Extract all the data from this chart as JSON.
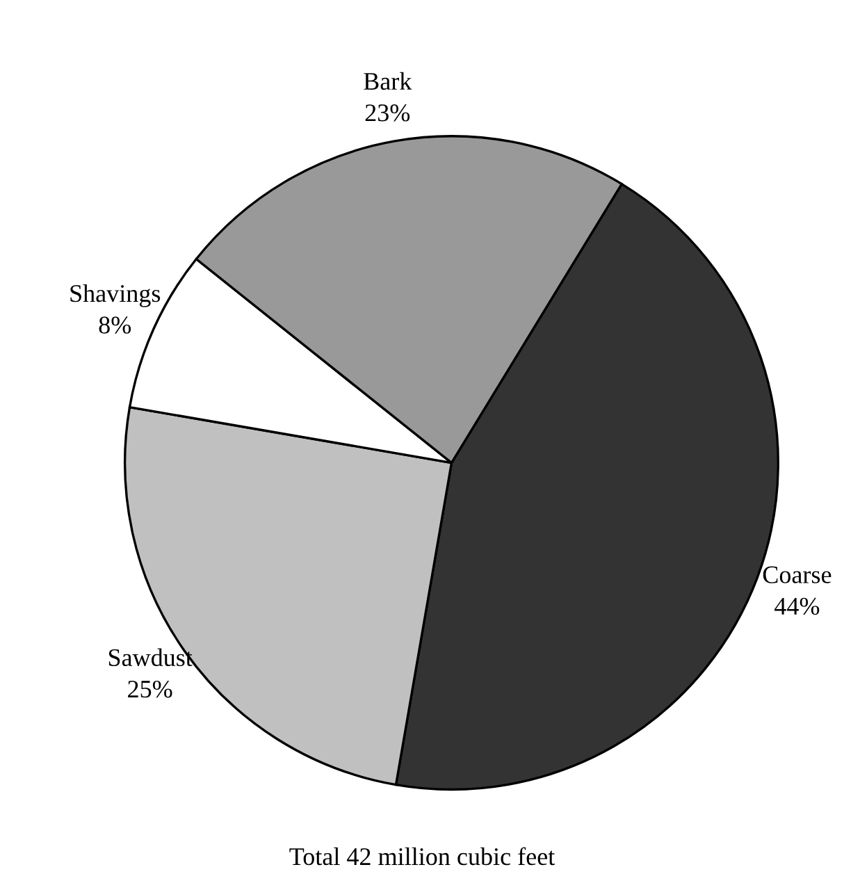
{
  "chart_data": {
    "type": "pie",
    "categories": [
      "Coarse",
      "Sawdust",
      "Shavings",
      "Bark"
    ],
    "values": [
      44,
      25,
      8,
      23
    ],
    "colors": [
      "#333333",
      "#c0c0c0",
      "#ffffff",
      "#999999"
    ],
    "value_labels": [
      "44%",
      "25%",
      "8%",
      "23%"
    ],
    "annotations": [
      "Total 42 million cubic feet"
    ]
  }
}
